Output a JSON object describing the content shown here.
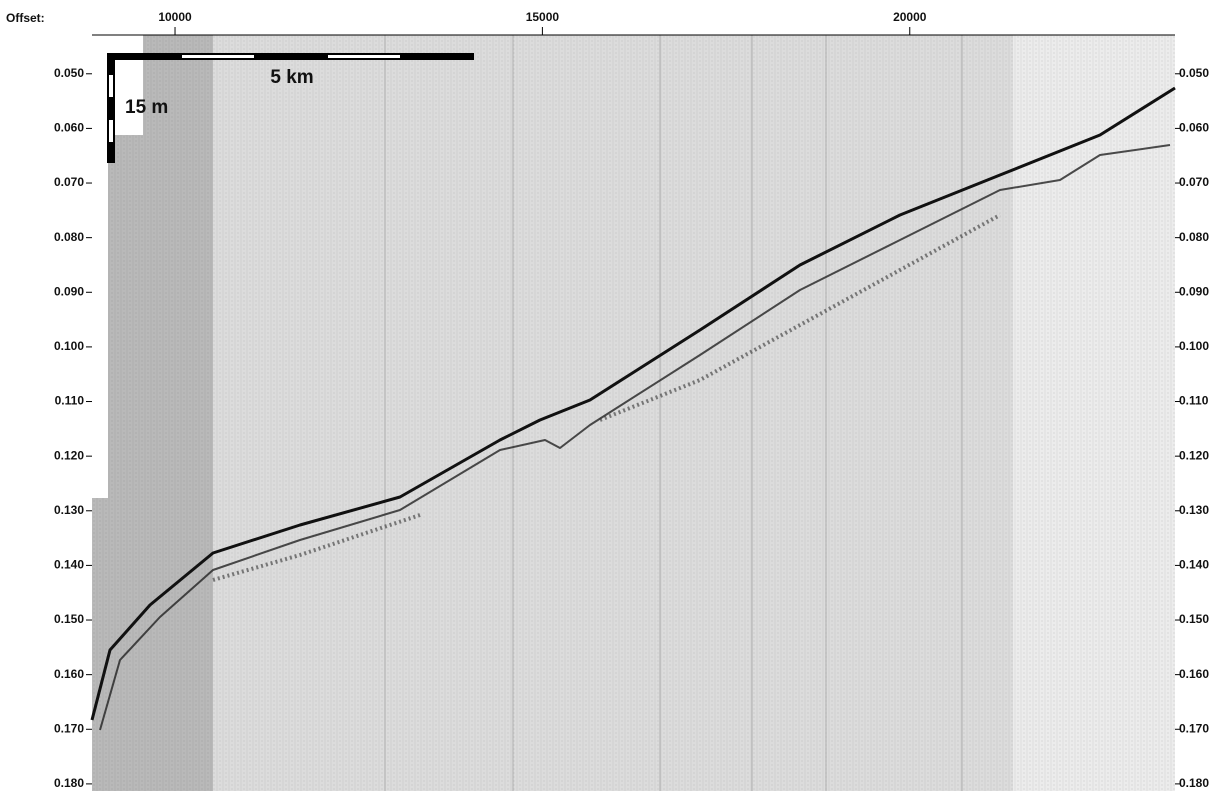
{
  "header": {
    "offset_label": "Offset:"
  },
  "x_axis": {
    "xlim": [
      8870,
      23610
    ],
    "ticks": [
      10000,
      15000,
      20000
    ]
  },
  "y_axis": {
    "ylim": [
      0.0429,
      0.1813
    ],
    "ticks": [
      {
        "value": 0.05,
        "label": "0.050"
      },
      {
        "value": 0.06,
        "label": "0.060"
      },
      {
        "value": 0.07,
        "label": "0.070"
      },
      {
        "value": 0.08,
        "label": "0.080"
      },
      {
        "value": 0.09,
        "label": "0.090"
      },
      {
        "value": 0.1,
        "label": "0.100"
      },
      {
        "value": 0.11,
        "label": "0.110"
      },
      {
        "value": 0.12,
        "label": "0.120"
      },
      {
        "value": 0.13,
        "label": "0.130"
      },
      {
        "value": 0.14,
        "label": "0.140"
      },
      {
        "value": 0.15,
        "label": "0.150"
      },
      {
        "value": 0.16,
        "label": "0.160"
      },
      {
        "value": 0.17,
        "label": "0.170"
      },
      {
        "value": 0.18,
        "label": "0.180"
      }
    ]
  },
  "scale_bar": {
    "horizontal_label": "5 km",
    "vertical_label": "15 m"
  }
}
